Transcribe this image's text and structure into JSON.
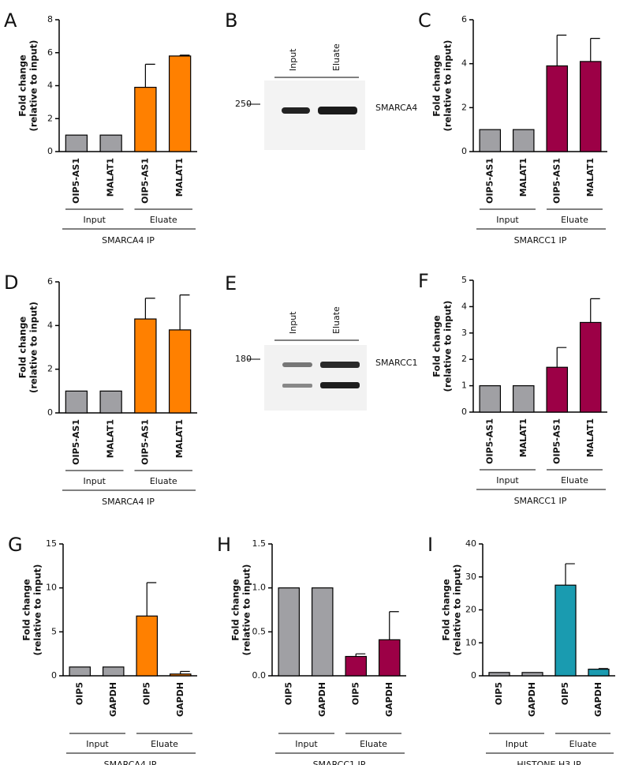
{
  "chart_data": [
    {
      "type": "bar",
      "label": "A",
      "ylabel": [
        "Fold change",
        "(relative to input)"
      ],
      "categories": [
        "OIP5-AS1",
        "MALAT1",
        "OIP5-AS1",
        "MALAT1"
      ],
      "values": [
        1,
        1,
        3.9,
        5.8
      ],
      "errors": [
        null,
        null,
        1.4,
        0.05
      ],
      "colors": [
        "#a0a0a4",
        "#a0a0a4",
        "#ff8000",
        "#ff8000"
      ],
      "groups": [
        "Input",
        "Eluate"
      ],
      "xlabel": "SMARCA4 IP",
      "ylim": [
        0,
        8
      ],
      "yticks": [
        0,
        2,
        4,
        6,
        8
      ]
    },
    {
      "type": "bar",
      "label": "C",
      "ylabel": [
        "Fold change",
        "(relative to input)"
      ],
      "categories": [
        "OIP5-AS1",
        "MALAT1",
        "OIP5-AS1",
        "MALAT1"
      ],
      "values": [
        1,
        1,
        3.9,
        4.1
      ],
      "errors": [
        null,
        null,
        1.4,
        1.05
      ],
      "colors": [
        "#a0a0a4",
        "#a0a0a4",
        "#9c0046",
        "#9c0046"
      ],
      "groups": [
        "Input",
        "Eluate"
      ],
      "xlabel": "SMARCC1 IP",
      "ylim": [
        0,
        6
      ],
      "yticks": [
        0,
        2,
        4,
        6
      ]
    },
    {
      "type": "bar",
      "label": "D",
      "ylabel": [
        "Fold change",
        "(relative to input)"
      ],
      "categories": [
        "OIP5-AS1",
        "MALAT1",
        "OIP5-AS1",
        "MALAT1"
      ],
      "values": [
        1,
        1,
        4.3,
        3.8
      ],
      "errors": [
        null,
        null,
        0.95,
        1.6
      ],
      "colors": [
        "#a0a0a4",
        "#a0a0a4",
        "#ff8000",
        "#ff8000"
      ],
      "groups": [
        "Input",
        "Eluate"
      ],
      "xlabel": "SMARCA4 IP",
      "ylim": [
        0,
        6
      ],
      "yticks": [
        0,
        2,
        4,
        6
      ]
    },
    {
      "type": "bar",
      "label": "F",
      "ylabel": [
        "Fold change",
        "(relative to input)"
      ],
      "categories": [
        "OIP5-AS1",
        "MALAT1",
        "OIP5-AS1",
        "MALAT1"
      ],
      "values": [
        1,
        1,
        1.7,
        3.4
      ],
      "errors": [
        null,
        null,
        0.75,
        0.9
      ],
      "colors": [
        "#a0a0a4",
        "#a0a0a4",
        "#9c0046",
        "#9c0046"
      ],
      "groups": [
        "Input",
        "Eluate"
      ],
      "xlabel": "SMARCC1 IP",
      "ylim": [
        0,
        5
      ],
      "yticks": [
        0,
        1,
        2,
        3,
        4,
        5
      ]
    },
    {
      "type": "bar",
      "label": "G",
      "ylabel": [
        "Fold change",
        "(relative to input)"
      ],
      "categories": [
        "OIP5",
        "GAPDH",
        "OIP5",
        "GAPDH"
      ],
      "values": [
        1,
        1,
        6.8,
        0.2
      ],
      "errors": [
        null,
        null,
        3.8,
        0.3
      ],
      "colors": [
        "#a0a0a4",
        "#a0a0a4",
        "#ff8000",
        "#ff8000"
      ],
      "groups": [
        "Input",
        "Eluate"
      ],
      "xlabel": "SMARCA4 IP",
      "ylim": [
        0,
        15
      ],
      "yticks": [
        0,
        5,
        10,
        15
      ]
    },
    {
      "type": "bar",
      "label": "H",
      "ylabel": [
        "Fold change",
        "(relative to input)"
      ],
      "categories": [
        "OIP5",
        "GAPDH",
        "OIP5",
        "GAPDH"
      ],
      "values": [
        1,
        1,
        0.22,
        0.41
      ],
      "errors": [
        null,
        null,
        0.03,
        0.32
      ],
      "colors": [
        "#a0a0a4",
        "#a0a0a4",
        "#9c0046",
        "#9c0046"
      ],
      "groups": [
        "Input",
        "Eluate"
      ],
      "xlabel": "SMARCC1 IP",
      "ylim": [
        0,
        1.5
      ],
      "yticks": [
        {
          "value": 0,
          "label": "0.0"
        },
        0.5,
        {
          "value": 1,
          "label": "1.0"
        },
        1.5
      ]
    },
    {
      "type": "bar",
      "label": "I",
      "ylabel": [
        "Fold change",
        "(relative to input)"
      ],
      "categories": [
        "OIP5",
        "GAPDH",
        "OIP5",
        "GAPDH"
      ],
      "values": [
        1,
        1,
        27.5,
        2
      ],
      "errors": [
        null,
        null,
        6.5,
        0.2
      ],
      "colors": [
        "#a0a0a4",
        "#a0a0a4",
        "#1a9bb0",
        "#1a9bb0"
      ],
      "groups": [
        "Input",
        "Eluate"
      ],
      "xlabel": "HISTONE H3 IP",
      "ylim": [
        0,
        40
      ],
      "yticks": [
        0,
        10,
        20,
        30,
        40
      ]
    }
  ],
  "blots": [
    {
      "label": "B",
      "lanes": [
        "Input",
        "Eluate"
      ],
      "marker": 250,
      "protein": "SMARCA4"
    },
    {
      "label": "E",
      "lanes": [
        "Input",
        "Eluate"
      ],
      "marker": 180,
      "protein": "SMARCC1"
    }
  ]
}
